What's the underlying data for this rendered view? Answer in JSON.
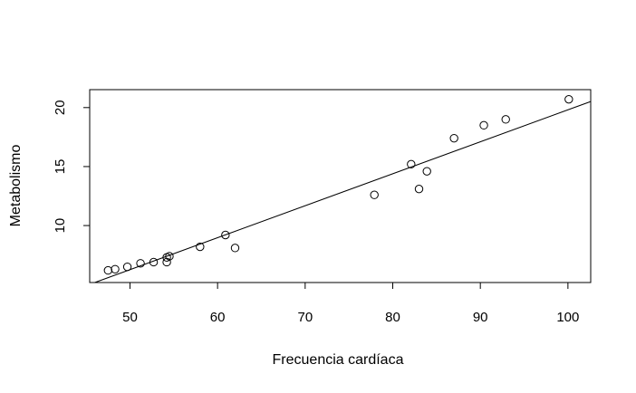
{
  "chart_data": {
    "type": "scatter",
    "xlabel": "Frecuencia cardíaca",
    "ylabel": "Metabolismo",
    "xlim": [
      45.4,
      102.6
    ],
    "ylim": [
      5.17,
      21.52
    ],
    "x_ticks": [
      50,
      60,
      70,
      80,
      90,
      100
    ],
    "y_ticks": [
      10,
      15,
      20
    ],
    "x_tick_labels": [
      "50",
      "60",
      "70",
      "80",
      "90",
      "100"
    ],
    "y_tick_labels": [
      "10",
      "15",
      "20"
    ],
    "grid": false,
    "points": [
      {
        "x": 47.5,
        "y": 6.2
      },
      {
        "x": 48.3,
        "y": 6.3
      },
      {
        "x": 49.7,
        "y": 6.5
      },
      {
        "x": 51.2,
        "y": 6.8
      },
      {
        "x": 52.7,
        "y": 6.9
      },
      {
        "x": 54.2,
        "y": 6.9
      },
      {
        "x": 54.2,
        "y": 7.3
      },
      {
        "x": 54.5,
        "y": 7.4
      },
      {
        "x": 58.0,
        "y": 8.2
      },
      {
        "x": 60.9,
        "y": 9.2
      },
      {
        "x": 62.0,
        "y": 8.1
      },
      {
        "x": 77.9,
        "y": 12.6
      },
      {
        "x": 82.1,
        "y": 15.2
      },
      {
        "x": 83.0,
        "y": 13.1
      },
      {
        "x": 83.9,
        "y": 14.6
      },
      {
        "x": 87.0,
        "y": 17.4
      },
      {
        "x": 90.4,
        "y": 18.5
      },
      {
        "x": 92.9,
        "y": 19.0
      },
      {
        "x": 100.1,
        "y": 20.7
      }
    ],
    "fit_line": {
      "intercept": -7.29,
      "slope": 0.271
    }
  }
}
